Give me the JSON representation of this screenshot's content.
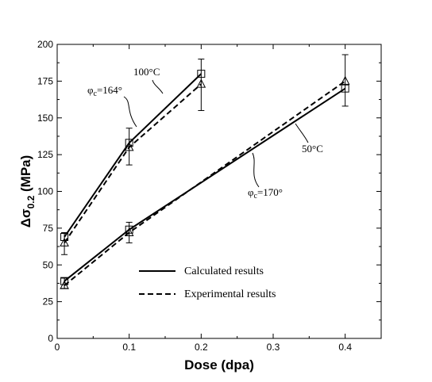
{
  "chart_data": {
    "type": "line",
    "xlabel": "Dose (dpa)",
    "ylabel_main": "Δσ",
    "ylabel_sub": "0.2",
    "ylabel_unit": " (MPa)",
    "xlim": [
      0,
      0.45
    ],
    "ylim": [
      0,
      200
    ],
    "xticks": [
      0,
      0.1,
      0.2,
      0.3,
      0.4
    ],
    "xtick_labels": [
      "0",
      "0.1",
      "0.2",
      "0.3",
      "0.4"
    ],
    "yticks": [
      0,
      25,
      50,
      75,
      100,
      125,
      150,
      175,
      200
    ],
    "ytick_labels": [
      "0",
      "25",
      "50",
      "75",
      "100",
      "125",
      "150",
      "175",
      "200"
    ],
    "groups": [
      {
        "temperature_label": "100°C",
        "phi_label": "φc=164°",
        "calculated": {
          "x": [
            0.01,
            0.1,
            0.2
          ],
          "y": [
            69,
            133,
            180
          ]
        },
        "experimental": {
          "x": [
            0.01,
            0.1,
            0.2
          ],
          "y": [
            65,
            130,
            173
          ],
          "err_low": [
            57,
            118,
            155
          ],
          "err_high": [
            72,
            143,
            190
          ]
        }
      },
      {
        "temperature_label": "50°C",
        "phi_label": "φc=170°",
        "calculated": {
          "x": [
            0.01,
            0.1,
            0.4
          ],
          "y": [
            39,
            74,
            170
          ]
        },
        "experimental": {
          "x": [
            0.01,
            0.1,
            0.4
          ],
          "y": [
            36,
            72,
            175
          ],
          "err_low": [
            34,
            65,
            158
          ],
          "err_high": [
            41,
            79,
            193
          ]
        }
      }
    ],
    "legend": {
      "placement": "lower-center",
      "entries": [
        {
          "label": "Calculated results",
          "style": "solid"
        },
        {
          "label": "Experimental results",
          "style": "dashed"
        }
      ]
    },
    "grid": false
  }
}
